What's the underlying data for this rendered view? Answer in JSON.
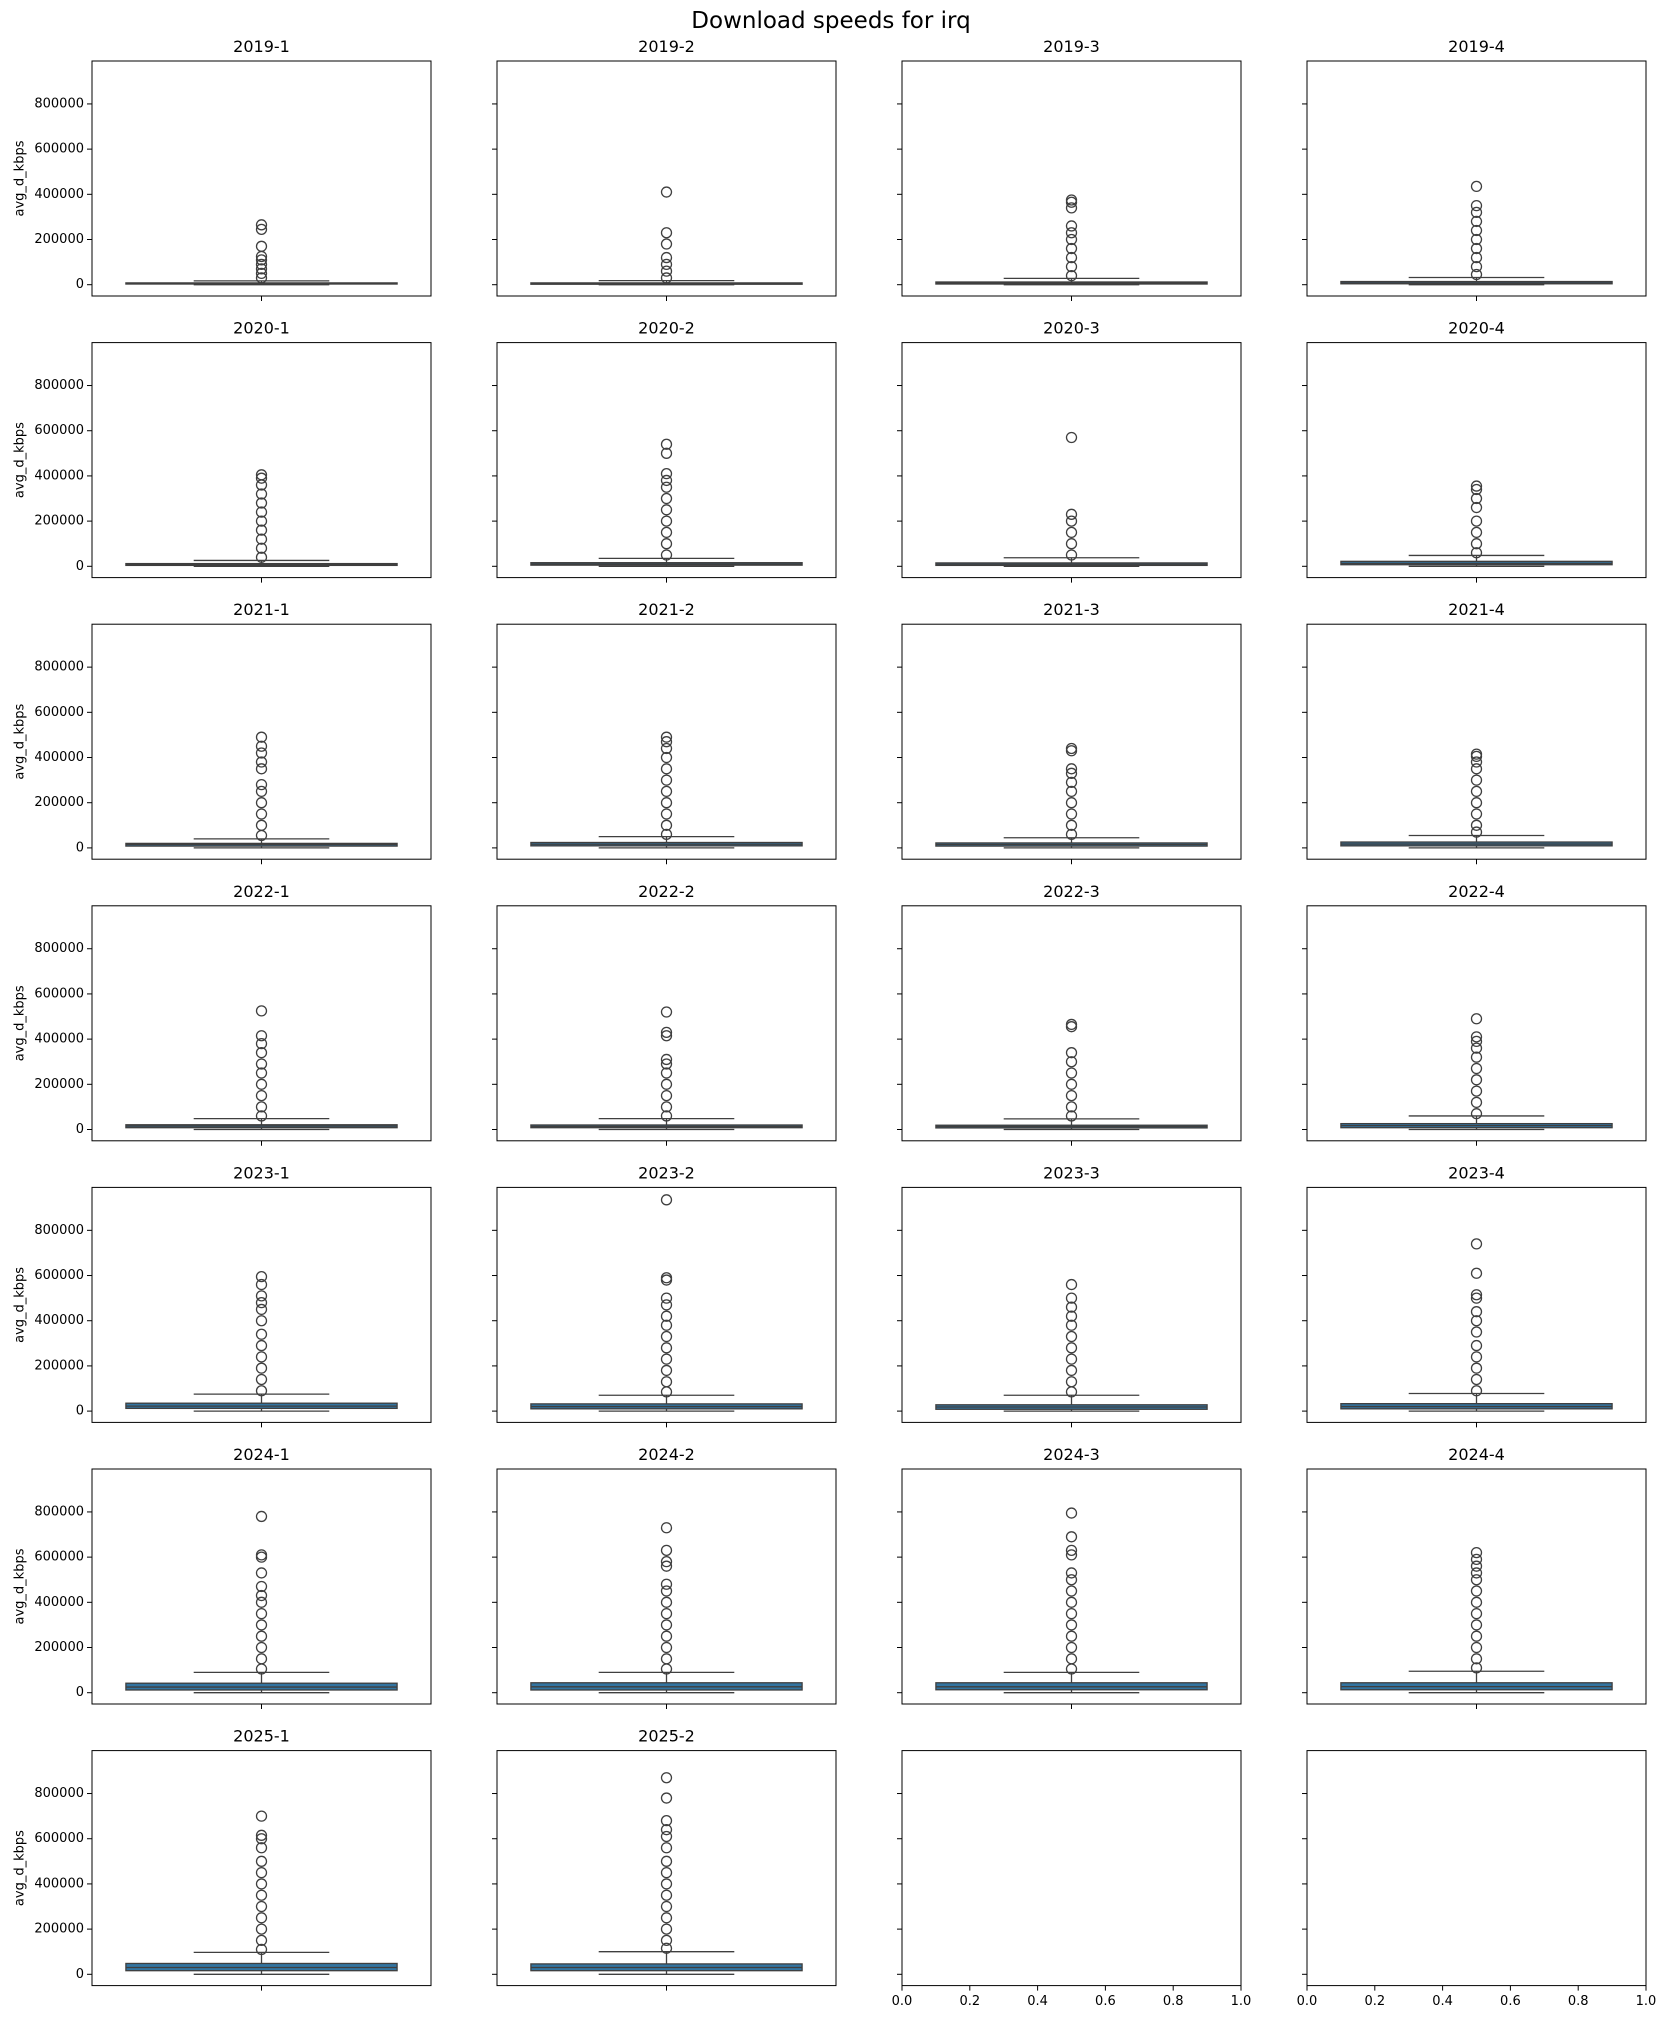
{
  "title": "Download speeds for irq",
  "chart_data": [
    {
      "type": "box",
      "title": "2019-1",
      "ylabel": "avg_d_kbps",
      "show_yticklabels": true,
      "ylim": [
        -50000,
        990000
      ],
      "yticks": [
        0,
        200000,
        400000,
        600000,
        800000
      ],
      "color": "#3274a1",
      "whisker_low": 0,
      "q1": 3000,
      "median": 5000,
      "q3": 8000,
      "whisker_high": 17000,
      "outliers": [
        30000,
        50000,
        70000,
        90000,
        110000,
        125000,
        170000,
        245000,
        265000
      ]
    },
    {
      "type": "box",
      "title": "2019-2",
      "show_yticklabels": false,
      "ylim": [
        -50000,
        990000
      ],
      "yticks": [
        0,
        200000,
        400000,
        600000,
        800000
      ],
      "color": "#3274a1",
      "whisker_low": 0,
      "q1": 2000,
      "median": 5000,
      "q3": 8000,
      "whisker_high": 18000,
      "outliers": [
        30000,
        60000,
        90000,
        120000,
        180000,
        230000,
        410000
      ]
    },
    {
      "type": "box",
      "title": "2019-3",
      "show_yticklabels": false,
      "ylim": [
        -50000,
        990000
      ],
      "yticks": [
        0,
        200000,
        400000,
        600000,
        800000
      ],
      "color": "#3274a1",
      "whisker_low": 0,
      "q1": 3000,
      "median": 7000,
      "q3": 12000,
      "whisker_high": 28000,
      "outliers": [
        40000,
        80000,
        120000,
        160000,
        200000,
        230000,
        260000,
        340000,
        365000,
        375000
      ]
    },
    {
      "type": "box",
      "title": "2019-4",
      "show_yticklabels": false,
      "ylim": [
        -50000,
        990000
      ],
      "yticks": [
        0,
        200000,
        400000,
        600000,
        800000
      ],
      "color": "#3274a1",
      "whisker_low": 0,
      "q1": 4000,
      "median": 8000,
      "q3": 14000,
      "whisker_high": 32000,
      "outliers": [
        45000,
        80000,
        120000,
        160000,
        200000,
        240000,
        280000,
        320000,
        350000,
        435000
      ]
    },
    {
      "type": "box",
      "title": "2020-1",
      "ylabel": "avg_d_kbps",
      "show_yticklabels": true,
      "ylim": [
        -50000,
        990000
      ],
      "yticks": [
        0,
        200000,
        400000,
        600000,
        800000
      ],
      "color": "#3274a1",
      "whisker_low": 0,
      "q1": 4000,
      "median": 8000,
      "q3": 12000,
      "whisker_high": 26000,
      "outliers": [
        40000,
        80000,
        120000,
        160000,
        200000,
        240000,
        280000,
        320000,
        360000,
        390000,
        405000
      ]
    },
    {
      "type": "box",
      "title": "2020-2",
      "show_yticklabels": false,
      "ylim": [
        -50000,
        990000
      ],
      "yticks": [
        0,
        200000,
        400000,
        600000,
        800000
      ],
      "color": "#3274a1",
      "whisker_low": 0,
      "q1": 5000,
      "median": 10000,
      "q3": 16000,
      "whisker_high": 35000,
      "outliers": [
        50000,
        100000,
        150000,
        200000,
        250000,
        300000,
        350000,
        380000,
        410000,
        500000,
        540000
      ]
    },
    {
      "type": "box",
      "title": "2020-3",
      "show_yticklabels": false,
      "ylim": [
        -50000,
        990000
      ],
      "yticks": [
        0,
        200000,
        400000,
        600000,
        800000
      ],
      "color": "#3274a1",
      "whisker_low": 0,
      "q1": 4000,
      "median": 9000,
      "q3": 15000,
      "whisker_high": 38000,
      "outliers": [
        50000,
        100000,
        150000,
        200000,
        230000,
        570000
      ]
    },
    {
      "type": "box",
      "title": "2020-4",
      "show_yticklabels": false,
      "ylim": [
        -50000,
        990000
      ],
      "yticks": [
        0,
        200000,
        400000,
        600000,
        800000
      ],
      "color": "#3274a1",
      "whisker_low": 0,
      "q1": 7000,
      "median": 13000,
      "q3": 22000,
      "whisker_high": 48000,
      "outliers": [
        60000,
        100000,
        150000,
        200000,
        260000,
        300000,
        340000,
        355000
      ]
    },
    {
      "type": "box",
      "title": "2021-1",
      "ylabel": "avg_d_kbps",
      "show_yticklabels": true,
      "ylim": [
        -50000,
        990000
      ],
      "yticks": [
        0,
        200000,
        400000,
        600000,
        800000
      ],
      "color": "#3274a1",
      "whisker_low": 0,
      "q1": 8000,
      "median": 15000,
      "q3": 20000,
      "whisker_high": 40000,
      "outliers": [
        55000,
        100000,
        150000,
        200000,
        250000,
        280000,
        350000,
        380000,
        420000,
        450000,
        490000
      ]
    },
    {
      "type": "box",
      "title": "2021-2",
      "show_yticklabels": false,
      "ylim": [
        -50000,
        990000
      ],
      "yticks": [
        0,
        200000,
        400000,
        600000,
        800000
      ],
      "color": "#3274a1",
      "whisker_low": 0,
      "q1": 9000,
      "median": 16000,
      "q3": 24000,
      "whisker_high": 50000,
      "outliers": [
        60000,
        100000,
        150000,
        200000,
        250000,
        300000,
        350000,
        400000,
        440000,
        470000,
        490000
      ]
    },
    {
      "type": "box",
      "title": "2021-3",
      "show_yticklabels": false,
      "ylim": [
        -50000,
        990000
      ],
      "yticks": [
        0,
        200000,
        400000,
        600000,
        800000
      ],
      "color": "#3274a1",
      "whisker_low": 0,
      "q1": 8000,
      "median": 15000,
      "q3": 22000,
      "whisker_high": 45000,
      "outliers": [
        60000,
        100000,
        150000,
        200000,
        250000,
        290000,
        330000,
        350000,
        430000,
        440000
      ]
    },
    {
      "type": "box",
      "title": "2021-4",
      "show_yticklabels": false,
      "ylim": [
        -50000,
        990000
      ],
      "yticks": [
        0,
        200000,
        400000,
        600000,
        800000
      ],
      "color": "#3274a1",
      "whisker_low": 0,
      "q1": 9000,
      "median": 17000,
      "q3": 26000,
      "whisker_high": 55000,
      "outliers": [
        70000,
        100000,
        150000,
        200000,
        250000,
        300000,
        350000,
        380000,
        405000,
        415000
      ]
    },
    {
      "type": "box",
      "title": "2022-1",
      "ylabel": "avg_d_kbps",
      "show_yticklabels": true,
      "ylim": [
        -50000,
        990000
      ],
      "yticks": [
        0,
        200000,
        400000,
        600000,
        800000
      ],
      "color": "#3274a1",
      "whisker_low": 0,
      "q1": 8000,
      "median": 15000,
      "q3": 21000,
      "whisker_high": 48000,
      "outliers": [
        60000,
        100000,
        150000,
        200000,
        250000,
        290000,
        340000,
        380000,
        415000,
        525000
      ]
    },
    {
      "type": "box",
      "title": "2022-2",
      "show_yticklabels": false,
      "ylim": [
        -50000,
        990000
      ],
      "yticks": [
        0,
        200000,
        400000,
        600000,
        800000
      ],
      "color": "#3274a1",
      "whisker_low": 0,
      "q1": 8000,
      "median": 14000,
      "q3": 20000,
      "whisker_high": 48000,
      "outliers": [
        60000,
        100000,
        150000,
        200000,
        250000,
        290000,
        310000,
        415000,
        430000,
        520000
      ]
    },
    {
      "type": "box",
      "title": "2022-3",
      "show_yticklabels": false,
      "ylim": [
        -50000,
        990000
      ],
      "yticks": [
        0,
        200000,
        400000,
        600000,
        800000
      ],
      "color": "#3274a1",
      "whisker_low": 0,
      "q1": 7000,
      "median": 13000,
      "q3": 19000,
      "whisker_high": 47000,
      "outliers": [
        60000,
        100000,
        150000,
        200000,
        250000,
        300000,
        340000,
        455000,
        465000
      ]
    },
    {
      "type": "box",
      "title": "2022-4",
      "show_yticklabels": false,
      "ylim": [
        -50000,
        990000
      ],
      "yticks": [
        0,
        200000,
        400000,
        600000,
        800000
      ],
      "color": "#3274a1",
      "whisker_low": 0,
      "q1": 8000,
      "median": 17000,
      "q3": 26000,
      "whisker_high": 60000,
      "outliers": [
        70000,
        120000,
        170000,
        220000,
        270000,
        320000,
        360000,
        390000,
        410000,
        490000
      ]
    },
    {
      "type": "box",
      "title": "2023-1",
      "ylabel": "avg_d_kbps",
      "show_yticklabels": true,
      "ylim": [
        -50000,
        990000
      ],
      "yticks": [
        0,
        200000,
        400000,
        600000,
        800000
      ],
      "color": "#3274a1",
      "whisker_low": 0,
      "q1": 12000,
      "median": 22000,
      "q3": 35000,
      "whisker_high": 75000,
      "outliers": [
        90000,
        140000,
        190000,
        240000,
        290000,
        340000,
        400000,
        450000,
        480000,
        510000,
        560000,
        595000
      ]
    },
    {
      "type": "box",
      "title": "2023-2",
      "show_yticklabels": false,
      "ylim": [
        -50000,
        990000
      ],
      "yticks": [
        0,
        200000,
        400000,
        600000,
        800000
      ],
      "color": "#3274a1",
      "whisker_low": 0,
      "q1": 10000,
      "median": 20000,
      "q3": 32000,
      "whisker_high": 70000,
      "outliers": [
        85000,
        130000,
        180000,
        230000,
        280000,
        330000,
        380000,
        420000,
        470000,
        500000,
        580000,
        590000,
        935000
      ]
    },
    {
      "type": "box",
      "title": "2023-3",
      "show_yticklabels": false,
      "ylim": [
        -50000,
        990000
      ],
      "yticks": [
        0,
        200000,
        400000,
        600000,
        800000
      ],
      "color": "#3274a1",
      "whisker_low": 0,
      "q1": 8000,
      "median": 18000,
      "q3": 28000,
      "whisker_high": 70000,
      "outliers": [
        85000,
        130000,
        180000,
        230000,
        280000,
        330000,
        380000,
        420000,
        460000,
        500000,
        560000
      ]
    },
    {
      "type": "box",
      "title": "2023-4",
      "show_yticklabels": false,
      "ylim": [
        -50000,
        990000
      ],
      "yticks": [
        0,
        200000,
        400000,
        600000,
        800000
      ],
      "color": "#3274a1",
      "whisker_low": 0,
      "q1": 10000,
      "median": 20000,
      "q3": 33000,
      "whisker_high": 78000,
      "outliers": [
        90000,
        140000,
        190000,
        240000,
        290000,
        350000,
        400000,
        440000,
        500000,
        515000,
        610000,
        740000
      ]
    },
    {
      "type": "box",
      "title": "2024-1",
      "ylabel": "avg_d_kbps",
      "show_yticklabels": true,
      "ylim": [
        -50000,
        990000
      ],
      "yticks": [
        0,
        200000,
        400000,
        600000,
        800000
      ],
      "color": "#3274a1",
      "whisker_low": 0,
      "q1": 12000,
      "median": 25000,
      "q3": 42000,
      "whisker_high": 90000,
      "outliers": [
        105000,
        150000,
        200000,
        250000,
        300000,
        350000,
        400000,
        430000,
        470000,
        530000,
        600000,
        610000,
        780000
      ]
    },
    {
      "type": "box",
      "title": "2024-2",
      "show_yticklabels": false,
      "ylim": [
        -50000,
        990000
      ],
      "yticks": [
        0,
        200000,
        400000,
        600000,
        800000
      ],
      "color": "#3274a1",
      "whisker_low": 0,
      "q1": 12000,
      "median": 26000,
      "q3": 44000,
      "whisker_high": 90000,
      "outliers": [
        105000,
        150000,
        200000,
        250000,
        300000,
        350000,
        400000,
        450000,
        480000,
        560000,
        580000,
        630000,
        730000
      ]
    },
    {
      "type": "box",
      "title": "2024-3",
      "show_yticklabels": false,
      "ylim": [
        -50000,
        990000
      ],
      "yticks": [
        0,
        200000,
        400000,
        600000,
        800000
      ],
      "color": "#3274a1",
      "whisker_low": 0,
      "q1": 13000,
      "median": 26000,
      "q3": 44000,
      "whisker_high": 90000,
      "outliers": [
        105000,
        150000,
        200000,
        250000,
        300000,
        350000,
        400000,
        450000,
        500000,
        530000,
        610000,
        630000,
        690000,
        795000
      ]
    },
    {
      "type": "box",
      "title": "2024-4",
      "show_yticklabels": false,
      "ylim": [
        -50000,
        990000
      ],
      "yticks": [
        0,
        200000,
        400000,
        600000,
        800000
      ],
      "color": "#3274a1",
      "whisker_low": 0,
      "q1": 13000,
      "median": 27000,
      "q3": 44000,
      "whisker_high": 95000,
      "outliers": [
        110000,
        150000,
        200000,
        250000,
        300000,
        350000,
        400000,
        450000,
        500000,
        530000,
        560000,
        590000,
        620000
      ]
    },
    {
      "type": "box",
      "title": "2025-1",
      "ylabel": "avg_d_kbps",
      "show_yticklabels": true,
      "ylim": [
        -50000,
        990000
      ],
      "yticks": [
        0,
        200000,
        400000,
        600000,
        800000
      ],
      "color": "#3274a1",
      "whisker_low": 0,
      "q1": 16000,
      "median": 30000,
      "q3": 48000,
      "whisker_high": 97000,
      "outliers": [
        110000,
        150000,
        200000,
        250000,
        300000,
        350000,
        400000,
        450000,
        500000,
        560000,
        600000,
        615000,
        700000
      ]
    },
    {
      "type": "box",
      "title": "2025-2",
      "show_yticklabels": false,
      "ylim": [
        -50000,
        990000
      ],
      "yticks": [
        0,
        200000,
        400000,
        600000,
        800000
      ],
      "color": "#3274a1",
      "whisker_low": 0,
      "q1": 16000,
      "median": 30000,
      "q3": 46000,
      "whisker_high": 100000,
      "outliers": [
        115000,
        150000,
        200000,
        250000,
        300000,
        350000,
        400000,
        450000,
        500000,
        560000,
        610000,
        640000,
        680000,
        780000,
        870000
      ]
    },
    {
      "type": "empty",
      "show_yticklabels": false,
      "ylim": [
        -50000,
        990000
      ],
      "yticks": [
        0,
        200000,
        400000,
        600000,
        800000
      ],
      "xlim": [
        0,
        1
      ],
      "xticks": [
        {
          "value": 0,
          "label": "0.0"
        },
        {
          "value": 0.2,
          "label": "0.2"
        },
        {
          "value": 0.4,
          "label": "0.4"
        },
        {
          "value": 0.6,
          "label": "0.6"
        },
        {
          "value": 0.8,
          "label": "0.8"
        },
        {
          "value": 1,
          "label": "1.0"
        }
      ]
    },
    {
      "type": "empty",
      "show_yticklabels": false,
      "ylim": [
        -50000,
        990000
      ],
      "yticks": [
        0,
        200000,
        400000,
        600000,
        800000
      ],
      "xlim": [
        0,
        1
      ],
      "xticks": [
        {
          "value": 0,
          "label": "0.0"
        },
        {
          "value": 0.2,
          "label": "0.2"
        },
        {
          "value": 0.4,
          "label": "0.4"
        },
        {
          "value": 0.6,
          "label": "0.6"
        },
        {
          "value": 0.8,
          "label": "0.8"
        },
        {
          "value": 1,
          "label": "1.0"
        }
      ]
    }
  ]
}
